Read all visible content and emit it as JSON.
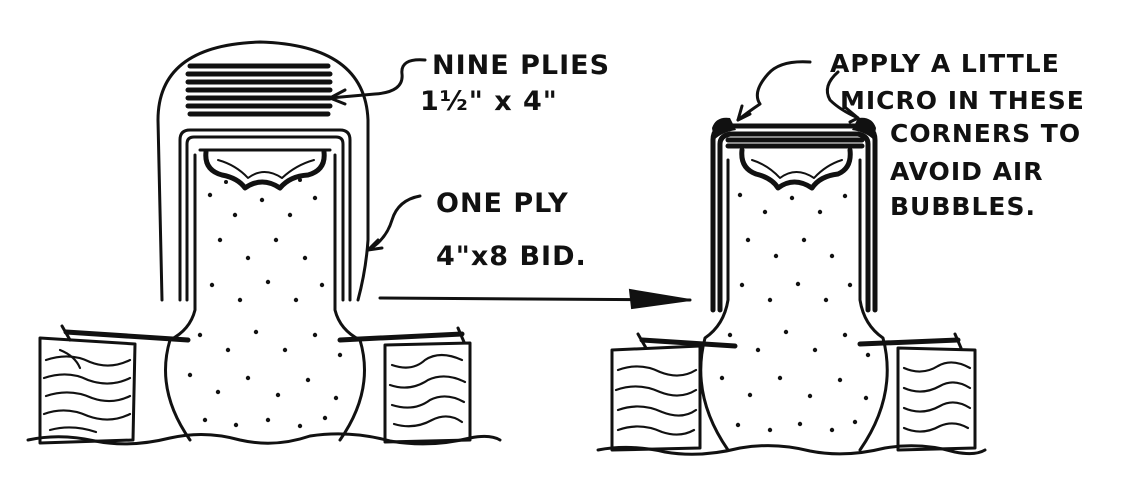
{
  "left_diagram": {
    "callout_top": {
      "line1": "NINE PLIES",
      "line2": "1½\" x 4\""
    },
    "callout_side": {
      "line1": "ONE PLY",
      "line2": "4\"x8 BID."
    }
  },
  "right_diagram": {
    "note": {
      "line1": "APPLY A LITTLE",
      "line2": "MICRO IN THESE",
      "line3": "CORNERS TO",
      "line4": "AVOID AIR",
      "line5": "BUBBLES."
    }
  },
  "colors": {
    "ink": "#111111",
    "paper": "#ffffff"
  }
}
